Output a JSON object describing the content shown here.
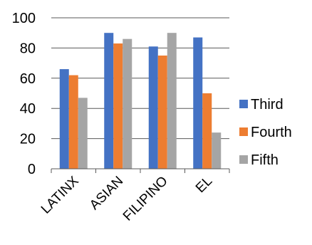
{
  "chart_data": {
    "type": "bar",
    "categories": [
      "LATINX",
      "ASIAN",
      "FILIPINO",
      "EL"
    ],
    "series": [
      {
        "name": "Third",
        "values": [
          66,
          90,
          81,
          87
        ],
        "color": "#4472C4"
      },
      {
        "name": "Fourth",
        "values": [
          62,
          83,
          75,
          50
        ],
        "color": "#ED7D31"
      },
      {
        "name": "Fifth",
        "values": [
          47,
          86,
          90,
          24
        ],
        "color": "#A5A5A5"
      }
    ],
    "yticks": [
      0,
      20,
      40,
      60,
      80,
      100
    ],
    "ylim": [
      0,
      100
    ],
    "grid": true,
    "legend_position": "right",
    "gridline_color": "#595959"
  }
}
